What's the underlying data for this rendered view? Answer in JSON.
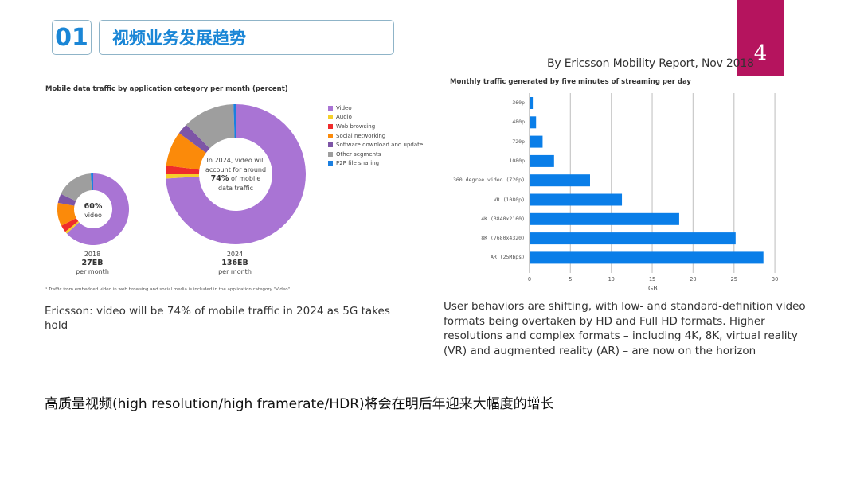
{
  "header": {
    "section_number": "01",
    "section_title": "视频业务发展趋势",
    "page_number": "4",
    "source": "By Ericsson Mobility Report, Nov 2018"
  },
  "colors": {
    "accent_blue": "#1a86d6",
    "page_block": "#b5145e",
    "bar": "#0a7ee8",
    "video": "#a974d4",
    "audio": "#f5cf2a",
    "web": "#ef2b2b",
    "social": "#fb8a0a",
    "software": "#7d55a6",
    "other": "#9e9e9e",
    "p2p": "#1b7fe0"
  },
  "left_panel": {
    "caption": "Ericsson: video will be 74% of mobile traffic in 2024 as 5G takes hold",
    "footnote": "¹ Traffic from embedded video in web browsing and social media is included in the application category \"Video\""
  },
  "right_panel": {
    "caption": "User behaviors are shifting, with low- and standard-definition video formats being overtaken by HD and Full HD formats. Higher resolutions and complex formats – including 4K, 8K, virtual reality (VR) and augmented reality (AR) – are now on the horizon"
  },
  "bottom_text": "高质量视频(high resolution/high framerate/HDR)将会在明后年迎来大幅度的增长",
  "chart_data": [
    {
      "type": "pie",
      "title": "Mobile data traffic by application category per month (percent)",
      "legend": [
        "Video",
        "Audio",
        "Web browsing",
        "Social networking",
        "Software download and update",
        "Other segments",
        "P2P file sharing"
      ],
      "legend_position": "right",
      "series": [
        {
          "name": "2018",
          "total": "27EB",
          "unit": "per month",
          "center_text": [
            "60%",
            "video"
          ],
          "values": [
            60,
            1,
            3,
            10,
            4,
            16,
            1
          ]
        },
        {
          "name": "2024",
          "total": "136EB",
          "unit": "per month",
          "center_text": [
            "In 2024, video will",
            "account for around",
            "74%",
            "of mobile",
            "data traffic"
          ],
          "values": [
            74,
            1,
            2,
            8,
            2.5,
            12,
            0.5
          ]
        }
      ]
    },
    {
      "type": "bar",
      "orientation": "horizontal",
      "title": "Monthly traffic generated by five minutes of streaming per day",
      "categories": [
        "360p",
        "480p",
        "720p",
        "1080p",
        "360 degree video (720p)",
        "VR (1080p)",
        "4K (3840x2160)",
        "8K (7680x4320)",
        "AR (25Mbps)"
      ],
      "values": [
        0.4,
        0.8,
        1.6,
        3.0,
        7.4,
        11.3,
        18.3,
        25.2,
        28.6
      ],
      "xlabel": "GB",
      "ylabel": "",
      "xlim": [
        0,
        30
      ],
      "xticks": [
        "0",
        "5",
        "10",
        "15",
        "20",
        "25",
        "30"
      ],
      "grid": true
    }
  ]
}
